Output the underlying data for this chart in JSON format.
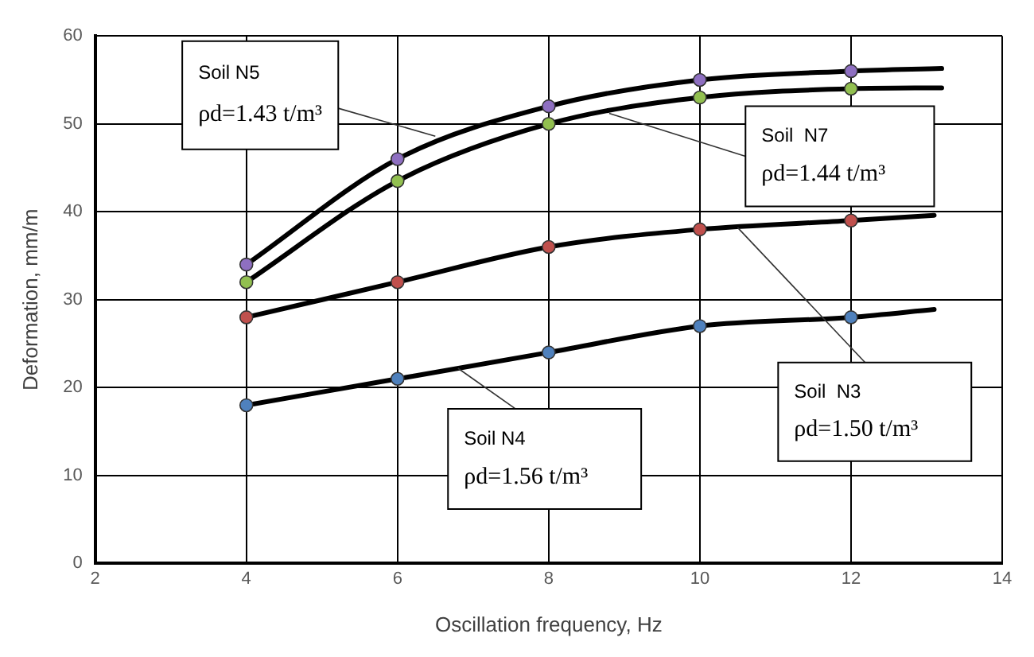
{
  "chart_data": {
    "type": "line",
    "xlabel": "Oscillation frequency, Hz",
    "ylabel": "Deformation, mm/m",
    "xlim": [
      2,
      14
    ],
    "xticks": [
      2,
      4,
      6,
      8,
      10,
      12,
      14
    ],
    "ylim": [
      0,
      60
    ],
    "yticks": [
      0,
      10,
      20,
      30,
      40,
      50,
      60
    ],
    "grid": true,
    "legend": false,
    "marker": "circle",
    "line_style": "solid",
    "annotations": [
      {
        "text": "Soil N5\nρd=1.43 t/m³",
        "x": 6.5,
        "y": 48.6
      },
      {
        "text": "Soil  N7\nρd=1.44 t/m³",
        "x": 8.8,
        "y": 51.2
      },
      {
        "text": "Soil  N3\nρd=1.50 t/m³",
        "x": 10.5,
        "y": 38.2
      },
      {
        "text": "Soil N4\nρd=1.56 t/m³",
        "x": 6.8,
        "y": 22.2
      }
    ],
    "series": [
      {
        "color": "#000000",
        "colors": [
          "#8e6fc1",
          "#8e6fc1",
          "#8e6fc1",
          "#8e6fc1",
          "#8e6fc1",
          null
        ],
        "x": [
          4,
          6,
          8,
          10,
          12,
          13.2
        ],
        "values": [
          34,
          46,
          52,
          55,
          56,
          56.3
        ]
      },
      {
        "color": "#000000",
        "colors": [
          "#92c050",
          "#92c050",
          "#92c050",
          "#92c050",
          "#92c050",
          null
        ],
        "x": [
          4,
          6,
          8,
          10,
          12,
          13.2
        ],
        "values": [
          32,
          43.5,
          50,
          53,
          54,
          54.1
        ]
      },
      {
        "color": "#000000",
        "colors": [
          "#c0504d",
          "#c0504d",
          "#c0504d",
          "#c0504d",
          "#c0504d",
          null
        ],
        "x": [
          4,
          6,
          8,
          10,
          12,
          13.1
        ],
        "values": [
          28,
          32,
          36,
          38,
          39,
          39.6
        ]
      },
      {
        "color": "#000000",
        "colors": [
          "#4f81bd",
          "#4f81bd",
          "#4f81bd",
          "#4f81bd",
          "#4f81bd",
          null
        ],
        "x": [
          4,
          6,
          8,
          10,
          12,
          13.1
        ],
        "values": [
          18,
          21,
          24,
          27,
          28,
          28.9
        ]
      }
    ]
  }
}
